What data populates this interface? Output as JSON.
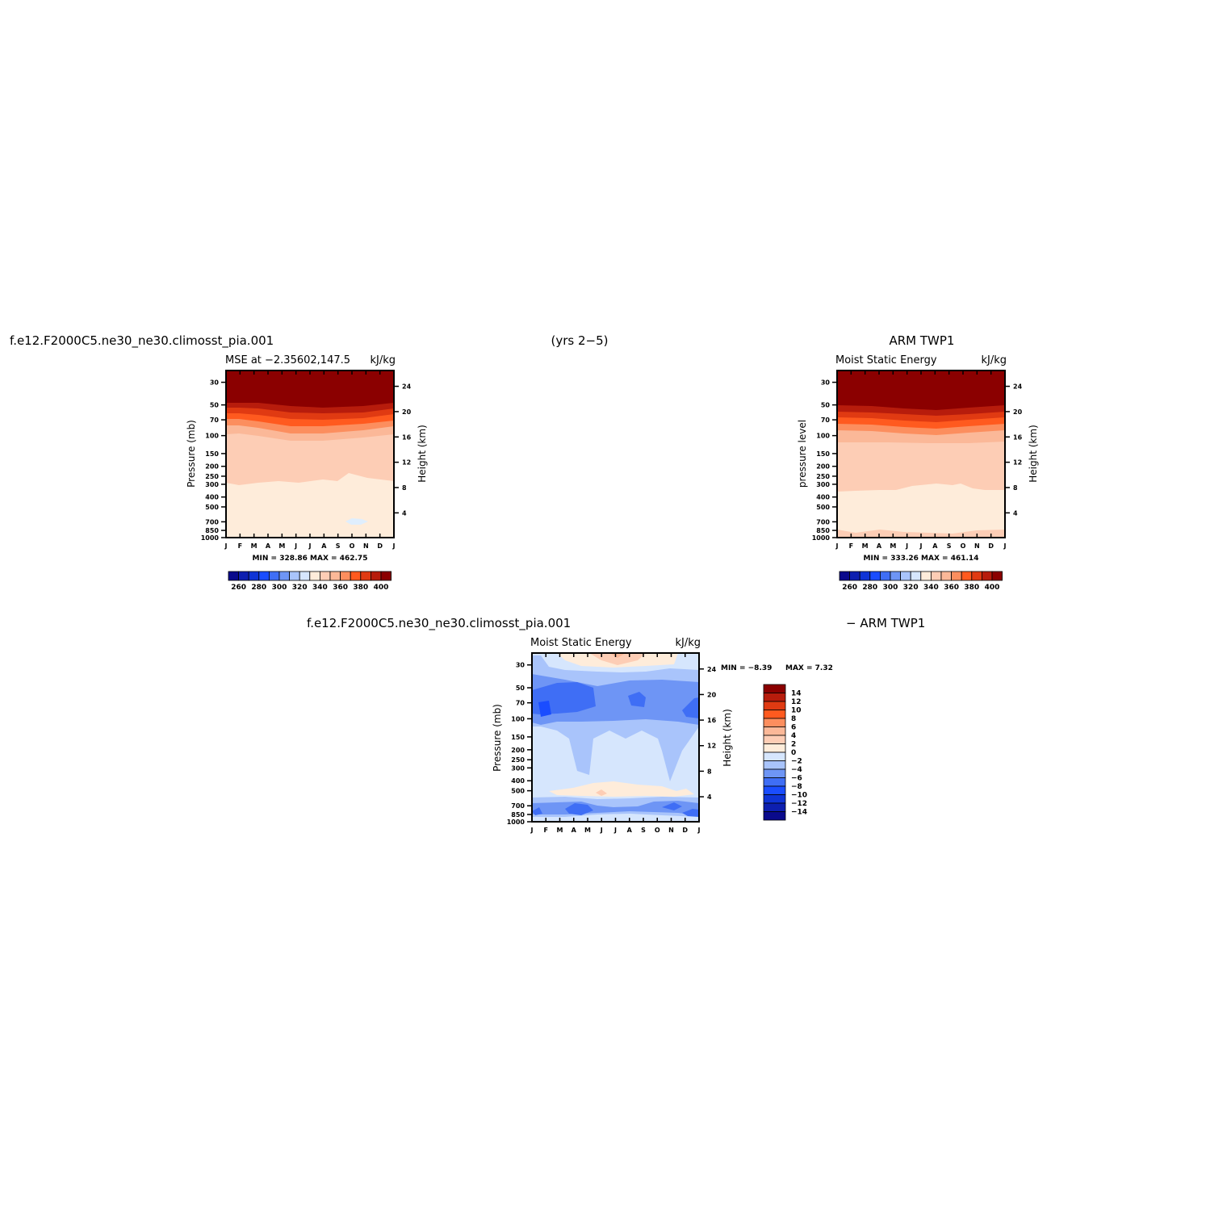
{
  "figure": {
    "title_top_left": "f.e12.F2000C5.ne30_ne30.climosst_pia.001",
    "title_top_center": "(yrs 2−5)",
    "title_top_right": "ARM  TWP1",
    "title_bottom_left": "f.e12.F2000C5.ne30_ne30.climosst_pia.001",
    "title_bottom_right": "− ARM  TWP1"
  },
  "chart_data": [
    {
      "id": "model",
      "type": "heatmap",
      "subtitle_left": "MSE  at  −2.35602,147.5",
      "units": "kJ/kg",
      "ylabel": "Pressure  (mb)",
      "y2label": "Height  (km)",
      "x_ticks": [
        "J",
        "F",
        "M",
        "A",
        "M",
        "J",
        "J",
        "A",
        "S",
        "O",
        "N",
        "D",
        "J"
      ],
      "p_ticks": [
        "30",
        "50",
        "70",
        "100",
        "150",
        "200",
        "250",
        "300",
        "400",
        "500",
        "700",
        "850",
        "1000"
      ],
      "h_ticks": [
        "24",
        "20",
        "16",
        "12",
        "8",
        "4"
      ],
      "stats": "MIN = 328.86  MAX = 462.75",
      "min": 328.86,
      "max": 462.75,
      "contour_levels": [
        250,
        260,
        270,
        280,
        290,
        300,
        310,
        320,
        330,
        340,
        350,
        360,
        370,
        380,
        390,
        400
      ],
      "colorbar_labels": [
        "260",
        "280",
        "300",
        "320",
        "340",
        "360",
        "380",
        "400"
      ],
      "regions": [
        {
          "value_range": "> 400",
          "color": "#8b0000"
        },
        {
          "value_range": "390-400",
          "color": "#b71c0c"
        },
        {
          "value_range": "380-390",
          "color": "#e03a12"
        },
        {
          "value_range": "370-380",
          "color": "#ff5a1f"
        },
        {
          "value_range": "360-370",
          "color": "#fc8e5e"
        },
        {
          "value_range": "350-360",
          "color": "#fbb898"
        },
        {
          "value_range": "340-350",
          "color": "#fdcdb5"
        },
        {
          "value_range": "330-340",
          "color": "#feecda"
        },
        {
          "value_range": "320-330",
          "color": "#dfeefd"
        }
      ]
    },
    {
      "id": "obs",
      "type": "heatmap",
      "subtitle_left": "Moist  Static  Energy",
      "units": "kJ/kg",
      "ylabel": "pressure  level",
      "y2label": "Height  (km)",
      "x_ticks": [
        "J",
        "F",
        "M",
        "A",
        "M",
        "J",
        "J",
        "A",
        "S",
        "O",
        "N",
        "D",
        "J"
      ],
      "p_ticks": [
        "30",
        "50",
        "70",
        "100",
        "150",
        "200",
        "250",
        "300",
        "400",
        "500",
        "700",
        "850",
        "1000"
      ],
      "h_ticks": [
        "24",
        "20",
        "16",
        "12",
        "8",
        "4"
      ],
      "stats": "MIN = 333.26  MAX = 461.14",
      "min": 333.26,
      "max": 461.14,
      "contour_levels": [
        250,
        260,
        270,
        280,
        290,
        300,
        310,
        320,
        330,
        340,
        350,
        360,
        370,
        380,
        390,
        400
      ],
      "colorbar_labels": [
        "260",
        "280",
        "300",
        "320",
        "340",
        "360",
        "380",
        "400"
      ]
    },
    {
      "id": "diff",
      "type": "heatmap",
      "subtitle_left": "Moist  Static  Energy",
      "units": "kJ/kg",
      "ylabel": "Pressure  (mb)",
      "y2label": "Height  (km)",
      "x_ticks": [
        "J",
        "F",
        "M",
        "A",
        "M",
        "J",
        "J",
        "A",
        "S",
        "O",
        "N",
        "D",
        "J"
      ],
      "p_ticks": [
        "30",
        "50",
        "70",
        "100",
        "150",
        "200",
        "250",
        "300",
        "400",
        "500",
        "700",
        "850",
        "1000"
      ],
      "h_ticks": [
        "24",
        "20",
        "16",
        "12",
        "8",
        "4"
      ],
      "stats_min": "MIN =   −8.39",
      "stats_max": "MAX =     7.32",
      "min": -8.39,
      "max": 7.32,
      "contour_levels": [
        -14,
        -12,
        -10,
        -8,
        -6,
        -4,
        -2,
        0,
        2,
        4,
        6,
        8,
        10,
        12,
        14
      ],
      "colorbar_labels": [
        "14",
        "12",
        "10",
        "8",
        "6",
        "4",
        "2",
        "0",
        "−2",
        "−4",
        "−6",
        "−8",
        "−10",
        "−12",
        "−14"
      ]
    }
  ],
  "colors": {
    "warm_scale": [
      "#0a0a8c",
      "#0d1fb0",
      "#0f34d6",
      "#1a4dff",
      "#3f6ef5",
      "#6e95f5",
      "#a9c4fb",
      "#d6e6fd",
      "#feecda",
      "#fdcdb5",
      "#fbb898",
      "#fc8e5e",
      "#ff5a1f",
      "#e03a12",
      "#b71c0c",
      "#8b0000"
    ]
  }
}
